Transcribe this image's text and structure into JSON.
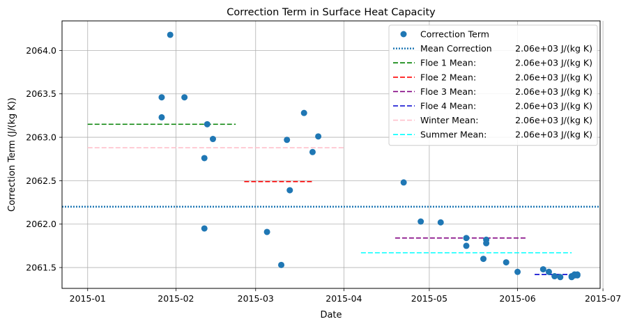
{
  "chart_data": {
    "type": "scatter",
    "title": "Correction Term in Surface Heat Capacity",
    "xlabel": "Date",
    "ylabel": "Correction Term (J/(kg K))",
    "xlim": [
      "2014-12-23",
      "2015-06-30"
    ],
    "ylim": [
      2061.26,
      2064.34
    ],
    "x_ticks": [
      {
        "date": "2015-01-01",
        "label": "2015-01"
      },
      {
        "date": "2015-02-01",
        "label": "2015-02"
      },
      {
        "date": "2015-03-01",
        "label": "2015-03"
      },
      {
        "date": "2015-04-01",
        "label": "2015-04"
      },
      {
        "date": "2015-05-01",
        "label": "2015-05"
      },
      {
        "date": "2015-06-01",
        "label": "2015-06"
      },
      {
        "date": "2015-07-01",
        "label": "2015-07"
      }
    ],
    "y_ticks": [
      {
        "value": 2061.5,
        "label": "2061.5"
      },
      {
        "value": 2062.0,
        "label": "2062.0"
      },
      {
        "value": 2062.5,
        "label": "2062.5"
      },
      {
        "value": 2063.0,
        "label": "2063.0"
      },
      {
        "value": 2063.5,
        "label": "2063.5"
      },
      {
        "value": 2064.0,
        "label": "2064.0"
      }
    ],
    "grid": true,
    "legend_position": "top-right",
    "points_series": {
      "name": "Correction Term",
      "color": "#1f77b4",
      "points": [
        {
          "x": "2015-01-27",
          "y": 2063.23
        },
        {
          "x": "2015-01-27",
          "y": 2063.46
        },
        {
          "x": "2015-01-30",
          "y": 2064.18
        },
        {
          "x": "2015-02-04",
          "y": 2063.46
        },
        {
          "x": "2015-02-11",
          "y": 2062.76
        },
        {
          "x": "2015-02-11",
          "y": 2061.95
        },
        {
          "x": "2015-02-12",
          "y": 2063.15
        },
        {
          "x": "2015-02-14",
          "y": 2062.98
        },
        {
          "x": "2015-03-05",
          "y": 2061.91
        },
        {
          "x": "2015-03-10",
          "y": 2061.53
        },
        {
          "x": "2015-03-12",
          "y": 2062.97
        },
        {
          "x": "2015-03-13",
          "y": 2062.39
        },
        {
          "x": "2015-03-18",
          "y": 2063.28
        },
        {
          "x": "2015-03-21",
          "y": 2062.83
        },
        {
          "x": "2015-03-23",
          "y": 2063.01
        },
        {
          "x": "2015-04-22",
          "y": 2062.48
        },
        {
          "x": "2015-04-28",
          "y": 2062.03
        },
        {
          "x": "2015-05-05",
          "y": 2062.02
        },
        {
          "x": "2015-05-14",
          "y": 2061.84
        },
        {
          "x": "2015-05-14",
          "y": 2061.75
        },
        {
          "x": "2015-05-20",
          "y": 2061.6
        },
        {
          "x": "2015-05-21",
          "y": 2061.82
        },
        {
          "x": "2015-05-21",
          "y": 2061.78
        },
        {
          "x": "2015-05-28",
          "y": 2061.56
        },
        {
          "x": "2015-06-01",
          "y": 2061.45
        },
        {
          "x": "2015-06-10",
          "y": 2061.48
        },
        {
          "x": "2015-06-12",
          "y": 2061.45
        },
        {
          "x": "2015-06-14",
          "y": 2061.4
        },
        {
          "x": "2015-06-16",
          "y": 2061.39
        },
        {
          "x": "2015-06-20",
          "y": 2061.39
        },
        {
          "x": "2015-06-20",
          "y": 2061.4
        },
        {
          "x": "2015-06-21",
          "y": 2061.42
        },
        {
          "x": "2015-06-21",
          "y": 2061.41
        },
        {
          "x": "2015-06-22",
          "y": 2061.41
        },
        {
          "x": "2015-06-22",
          "y": 2061.42
        }
      ]
    },
    "line_series": [
      {
        "name": "Mean Correction",
        "value_label": "2.06e+03 J/(kg K)",
        "color": "#1f77b4",
        "style": "dotted",
        "y": 2062.2,
        "x_start": "2014-12-23",
        "x_end": "2015-06-30"
      },
      {
        "name": "Floe 1 Mean:",
        "value_label": "2.06e+03 J/(kg K)",
        "color": "#008000",
        "style": "dashed",
        "y": 2063.15,
        "x_start": "2015-01-01",
        "x_end": "2015-02-22"
      },
      {
        "name": "Floe 2 Mean:",
        "value_label": "2.06e+03 J/(kg K)",
        "color": "#ff0000",
        "style": "dashed",
        "y": 2062.49,
        "x_start": "2015-02-25",
        "x_end": "2015-03-21"
      },
      {
        "name": "Floe 3 Mean:",
        "value_label": "2.06e+03 J/(kg K)",
        "color": "#800080",
        "style": "dashed",
        "y": 2061.84,
        "x_start": "2015-04-19",
        "x_end": "2015-06-04"
      },
      {
        "name": "Floe 4 Mean:",
        "value_label": "2.06e+03 J/(kg K)",
        "color": "#0000cd",
        "style": "dashed",
        "y": 2061.42,
        "x_start": "2015-06-07",
        "x_end": "2015-06-22"
      },
      {
        "name": "Winter Mean:",
        "value_label": "2.06e+03 J/(kg K)",
        "color": "#ffc0cb",
        "style": "dashed",
        "y": 2062.88,
        "x_start": "2015-01-01",
        "x_end": "2015-04-01"
      },
      {
        "name": "Summer Mean:",
        "value_label": "2.06e+03 J/(kg K)",
        "color": "#00ffff",
        "style": "dashed",
        "y": 2061.67,
        "x_start": "2015-04-07",
        "x_end": "2015-06-20"
      }
    ]
  }
}
